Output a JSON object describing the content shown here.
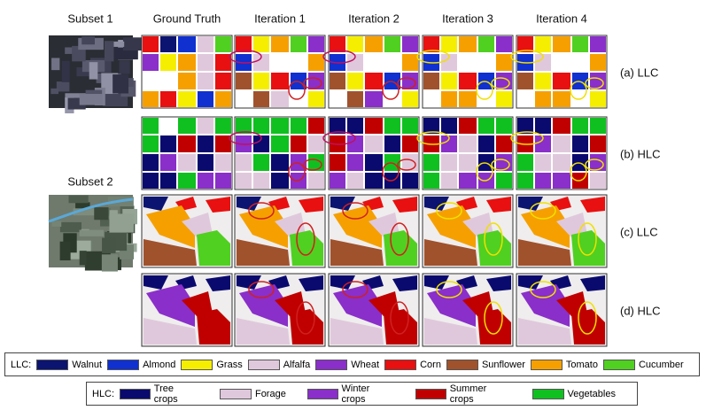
{
  "subsets": [
    "Subset 1",
    "Subset 2"
  ],
  "columns": [
    "Ground Truth",
    "Iteration 1",
    "Iteration 2",
    "Iteration 3",
    "Iteration 4"
  ],
  "rows": [
    "(a) LLC",
    "(b) HLC",
    "(c) LLC",
    "(d) HLC"
  ],
  "legends": [
    {
      "title": "LLC:",
      "items": [
        {
          "label": "Walnut",
          "color": "#0b1470"
        },
        {
          "label": "Almond",
          "color": "#1030d0"
        },
        {
          "label": "Grass",
          "color": "#f5ee00"
        },
        {
          "label": "Alfalfa",
          "color": "#e0c8dc"
        },
        {
          "label": "Wheat",
          "color": "#8a2fc9"
        },
        {
          "label": "Corn",
          "color": "#e81010"
        },
        {
          "label": "Sunflower",
          "color": "#a0522d"
        },
        {
          "label": "Tomato",
          "color": "#f5a000"
        },
        {
          "label": "Cucumber",
          "color": "#50d020"
        }
      ]
    },
    {
      "title": "HLC:",
      "items": [
        {
          "label": "Tree crops",
          "color": "#0a0a6e"
        },
        {
          "label": "Forage",
          "color": "#e0c8dc"
        },
        {
          "label": "Winter crops",
          "color": "#8a2fc9"
        },
        {
          "label": "Summer crops",
          "color": "#c00000"
        },
        {
          "label": "Vegetables",
          "color": "#10c020"
        }
      ]
    }
  ]
}
